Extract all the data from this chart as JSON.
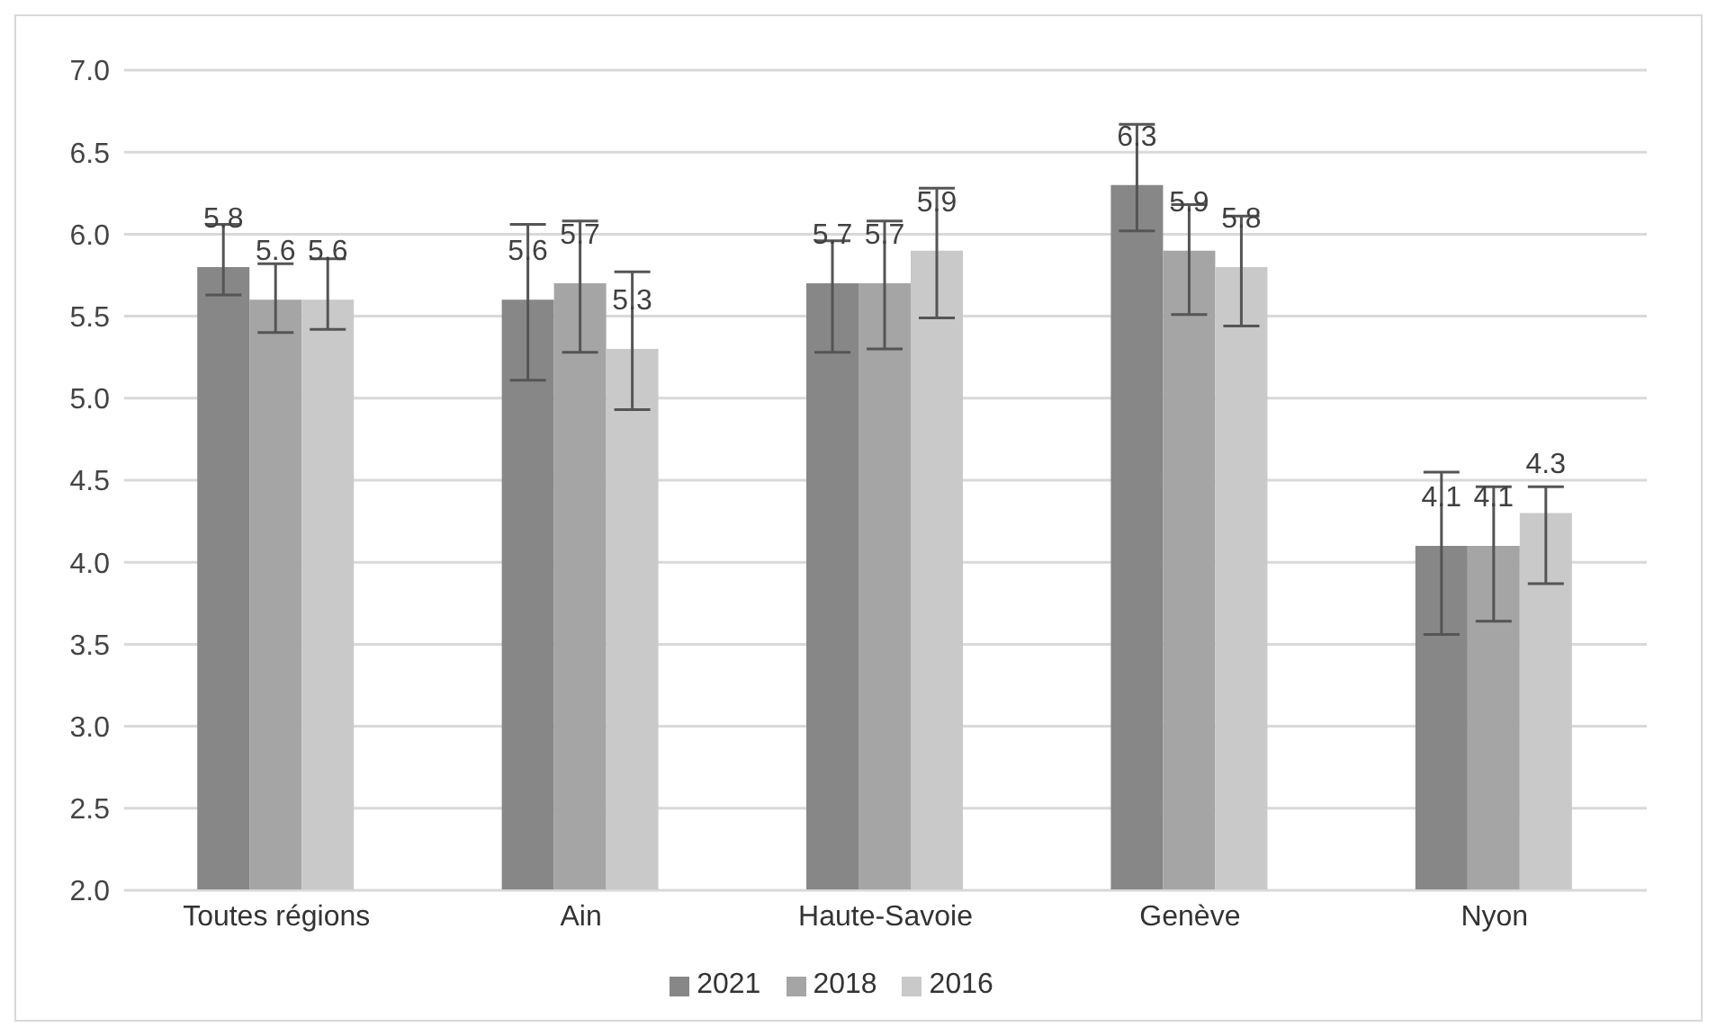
{
  "chart_data": {
    "type": "bar",
    "categories": [
      "Toutes régions",
      "Ain",
      "Haute-Savoie",
      "Genève",
      "Nyon"
    ],
    "series": [
      {
        "name": "2021",
        "color": "#878787",
        "values": [
          5.8,
          5.6,
          5.7,
          6.3,
          4.1
        ],
        "errors": [
          [
            5.63,
            6.06
          ],
          [
            5.11,
            6.06
          ],
          [
            5.28,
            5.96
          ],
          [
            6.02,
            6.67
          ],
          [
            3.56,
            4.55
          ]
        ]
      },
      {
        "name": "2018",
        "color": "#a5a5a5",
        "values": [
          5.6,
          5.7,
          5.7,
          5.9,
          4.1
        ],
        "errors": [
          [
            5.4,
            5.82
          ],
          [
            5.28,
            6.08
          ],
          [
            5.3,
            6.08
          ],
          [
            5.51,
            6.18
          ],
          [
            3.64,
            4.46
          ]
        ]
      },
      {
        "name": "2016",
        "color": "#c9c9c9",
        "values": [
          5.6,
          5.3,
          5.9,
          5.8,
          4.3
        ],
        "errors": [
          [
            5.42,
            5.85
          ],
          [
            4.93,
            5.77
          ],
          [
            5.49,
            6.28
          ],
          [
            5.44,
            6.11
          ],
          [
            3.87,
            4.46
          ]
        ]
      }
    ],
    "ylim": [
      2,
      7
    ],
    "yticks": [
      {
        "value": 2,
        "label": "2.0"
      },
      {
        "value": 2.5,
        "label": "2.5"
      },
      {
        "value": 3,
        "label": "3.0"
      },
      {
        "value": 3.5,
        "label": "3.5"
      },
      {
        "value": 4,
        "label": "4.0"
      },
      {
        "value": 4.5,
        "label": "4.5"
      },
      {
        "value": 5,
        "label": "5.0"
      },
      {
        "value": 5.5,
        "label": "5.5"
      },
      {
        "value": 6,
        "label": "6.0"
      },
      {
        "value": 6.5,
        "label": "6.5"
      },
      {
        "value": 7,
        "label": "7.0"
      }
    ],
    "grid": "y",
    "legend": "bottom",
    "data_labels": true
  }
}
